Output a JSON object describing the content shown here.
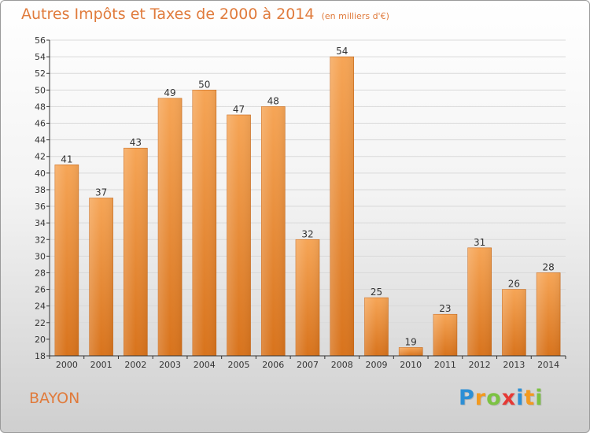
{
  "title": "Autres Impôts et Taxes de 2000 à 2014",
  "unit_label": "(en milliers d'€)",
  "commune": "BAYON",
  "logo": {
    "text": "Proxiti",
    "letters": [
      {
        "ch": "P",
        "color": "#2d8fd5"
      },
      {
        "ch": "r",
        "color": "#f39a1f"
      },
      {
        "ch": "o",
        "color": "#7cc242"
      },
      {
        "ch": "x",
        "color": "#e53935"
      },
      {
        "ch": "i",
        "color": "#2d8fd5"
      },
      {
        "ch": "t",
        "color": "#f39a1f"
      },
      {
        "ch": "i",
        "color": "#7cc242"
      }
    ]
  },
  "colors": {
    "title": "#e07b3c",
    "bar_top": "#f6a556",
    "bar_bottom": "#d8731c",
    "grid": "#d9d9d9",
    "axis": "#333333",
    "text": "#333333"
  },
  "chart_data": {
    "type": "bar",
    "title": "Autres Impôts et Taxes de 2000 à 2014",
    "xlabel": "",
    "ylabel": "",
    "categories": [
      "2000",
      "2001",
      "2002",
      "2003",
      "2004",
      "2005",
      "2006",
      "2007",
      "2008",
      "2009",
      "2010",
      "2011",
      "2012",
      "2013",
      "2014"
    ],
    "values": [
      41,
      37,
      43,
      49,
      50,
      47,
      48,
      32,
      54,
      25,
      19,
      23,
      31,
      26,
      28
    ],
    "ylim": [
      18,
      56
    ],
    "yticks": [
      18,
      20,
      22,
      24,
      26,
      28,
      30,
      32,
      34,
      36,
      38,
      40,
      42,
      44,
      46,
      48,
      50,
      52,
      54,
      56
    ],
    "grid": true,
    "data_labels": true,
    "legend": "none"
  }
}
